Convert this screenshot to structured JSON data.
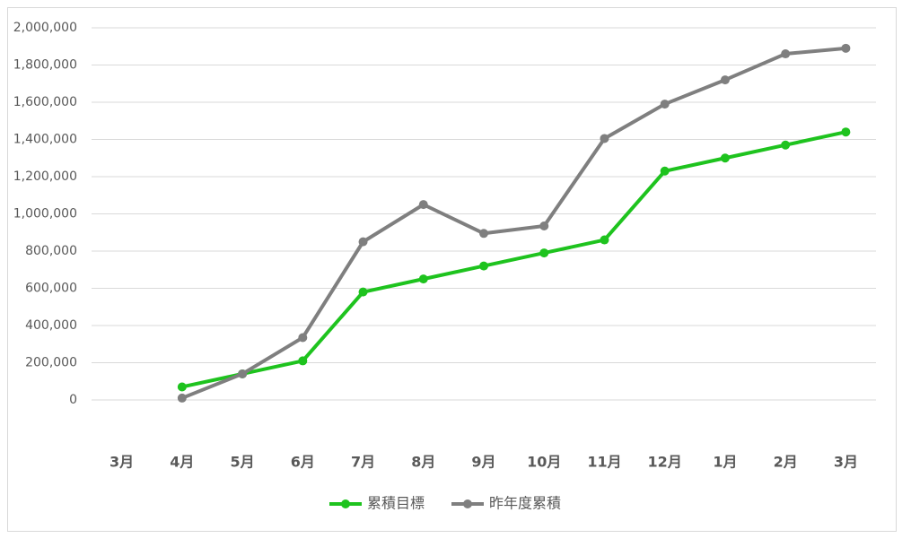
{
  "chart_data": {
    "type": "line",
    "categories": [
      "3月",
      "4月",
      "5月",
      "6月",
      "7月",
      "8月",
      "9月",
      "10月",
      "11月",
      "12月",
      "1月",
      "2月",
      "3月"
    ],
    "series": [
      {
        "name": "累積目標",
        "color": "#1ec31e",
        "values": [
          null,
          70000,
          140000,
          210000,
          580000,
          650000,
          720000,
          790000,
          860000,
          1230000,
          1300000,
          1370000,
          1440000
        ]
      },
      {
        "name": "昨年度累積",
        "color": "#7f7f7f",
        "values": [
          null,
          10000,
          140000,
          335000,
          850000,
          1050000,
          895000,
          935000,
          1405000,
          1590000,
          1720000,
          1860000,
          1890000
        ]
      }
    ],
    "ylim": [
      0,
      2000000
    ],
    "yticks": [
      0,
      {
        "value": 200000,
        "label": "200,000"
      },
      {
        "value": 400000,
        "label": "400,000"
      },
      {
        "value": 600000,
        "label": "600,000"
      },
      {
        "value": 800000,
        "label": "800,000"
      },
      {
        "value": 1000000,
        "label": "1,000,000"
      },
      {
        "value": 1200000,
        "label": "1,200,000"
      },
      {
        "value": 1400000,
        "label": "1,400,000"
      },
      {
        "value": 1600000,
        "label": "1,600,000"
      },
      {
        "value": 1800000,
        "label": "1,800,000"
      },
      {
        "value": 2000000,
        "label": "2,000,000"
      }
    ],
    "grid": true,
    "legend": "bottom"
  }
}
